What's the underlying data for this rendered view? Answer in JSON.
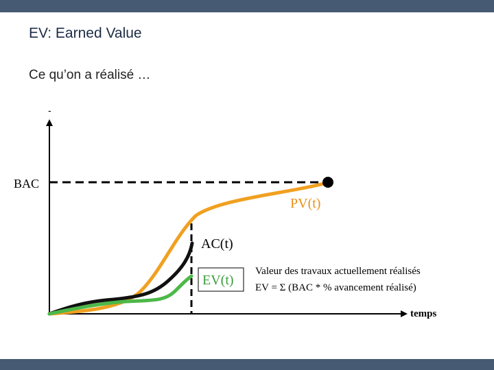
{
  "slide": {
    "title": "EV: Earned Value",
    "subtitle": "Ce qu’on a réalisé …"
  },
  "diagram": {
    "y_axis_mark": "-",
    "bac_label": "BAC",
    "x_axis_label": "temps",
    "pv_label": "PV(t)",
    "ac_label": "AC(t)",
    "ev_label": "EV(t)",
    "definition_line1": "Valeur des travaux actuellement réalisés",
    "definition_line2": "EV = Σ (BAC * % avancement réalisé)",
    "colors": {
      "pv": "#f0a020",
      "ac": "#111111",
      "ev": "#4cb848",
      "axis": "#000000",
      "header_bar": "#475a73"
    }
  }
}
